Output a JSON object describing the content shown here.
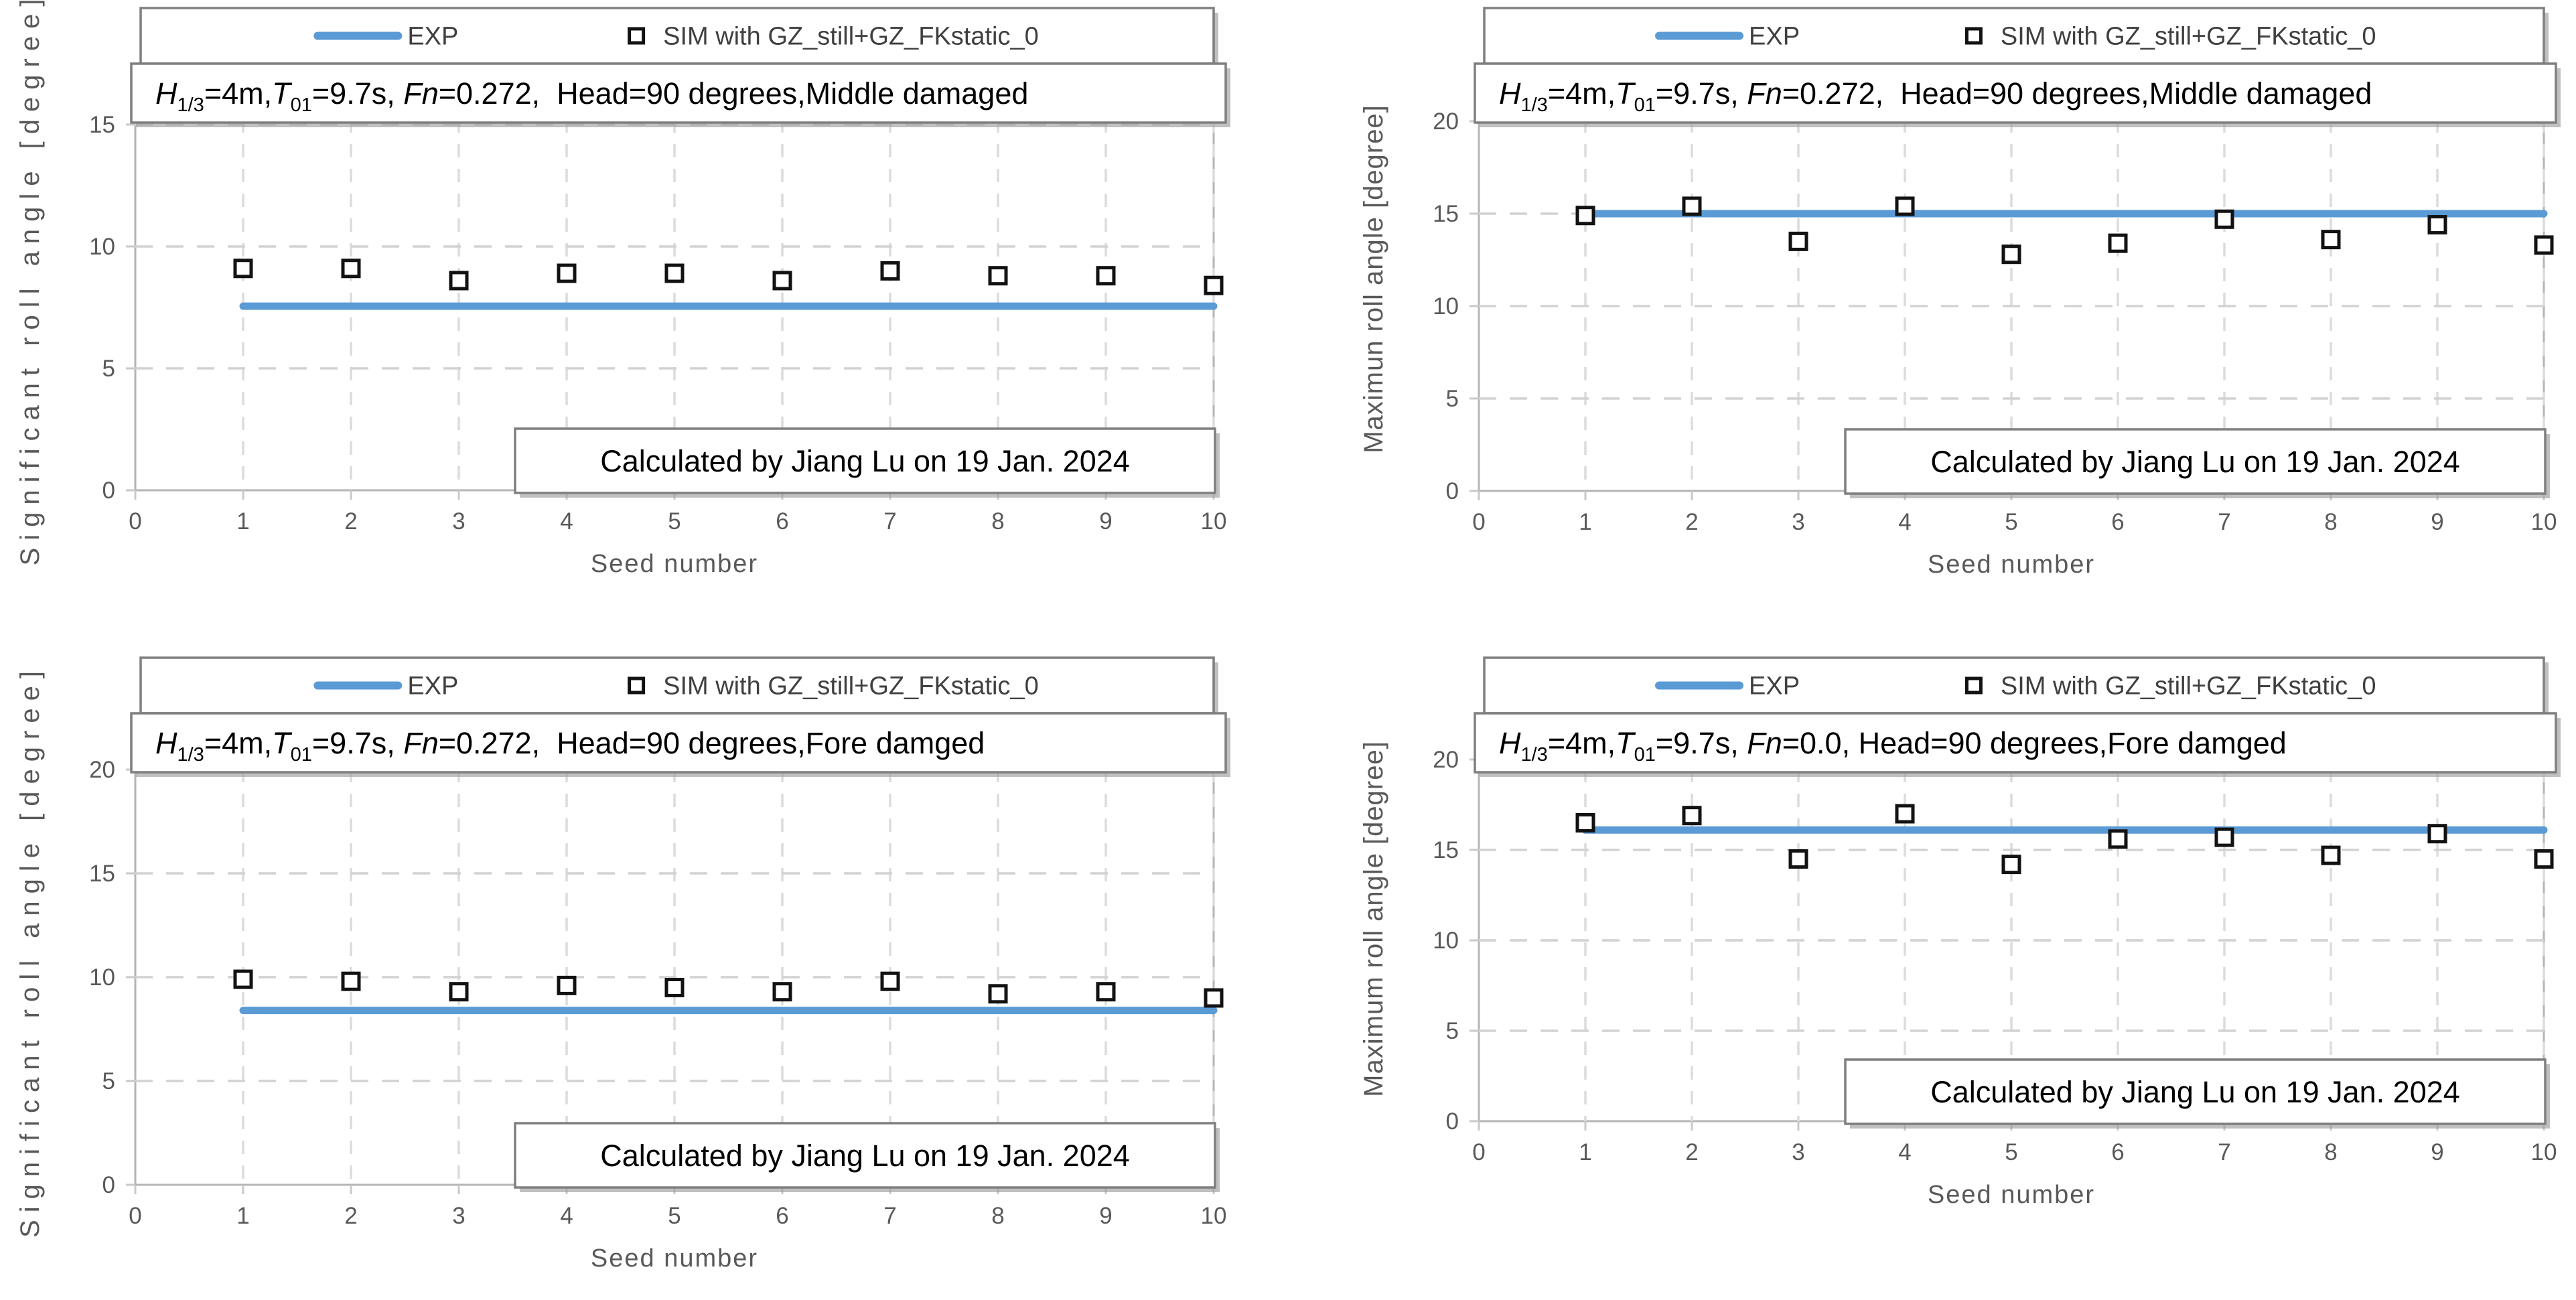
{
  "page": {
    "background": "#ffffff"
  },
  "colors": {
    "exp_line": "#5B9BD5",
    "marker_stroke": "#121212",
    "marker_fill": "#ffffff",
    "grid_h": "#d2d2d2",
    "grid_v": "#dcdcdc",
    "plot_border": "#b5b5b5",
    "tick_stub": "#c9c9c9",
    "axis_text": "#595959",
    "legend_text": "#3f3f3f",
    "title_text": "#000000",
    "annotation_text": "#000000",
    "box_border": "#7f7f7f",
    "box_fill": "#ffffff"
  },
  "chart_data": [
    {
      "type": "scatter",
      "position": "top-left",
      "title": "H1/3=4m,T01=9.7s, Fn=0.272,  Head=90 degrees,Middle damaged",
      "condition_runs": [
        {
          "t": "H",
          "i": true
        },
        {
          "t": "1/3",
          "sub": true
        },
        {
          "t": "=4m,"
        },
        {
          "t": "T",
          "i": true
        },
        {
          "t": "01",
          "sub": true
        },
        {
          "t": "=9.7s, "
        },
        {
          "t": "Fn",
          "i": true
        },
        {
          "t": "=0.272,  Head=90 degrees,Middle damaged"
        }
      ],
      "legend": {
        "exp": "EXP",
        "sim": "SIM with GZ_still+GZ_FKstatic_0"
      },
      "annotation": "Calculated by Jiang Lu on 19 Jan. 2024",
      "xlabel": "Seed number",
      "ylabel": "Significant roll angle [degree]",
      "xticks": [
        0,
        1,
        2,
        3,
        4,
        5,
        6,
        7,
        8,
        9,
        10
      ],
      "yticks": [
        0,
        5,
        10,
        15
      ],
      "xlim": [
        0,
        10
      ],
      "ylim": [
        0,
        15
      ],
      "x": [
        1,
        2,
        3,
        4,
        5,
        6,
        7,
        8,
        9,
        10
      ],
      "series": [
        {
          "name": "EXP",
          "type": "line",
          "value": 7.55
        },
        {
          "name": "SIM with GZ_still+GZ_FKstatic_0",
          "type": "scatter",
          "values": [
            9.1,
            9.1,
            8.6,
            8.9,
            8.9,
            8.6,
            9.0,
            8.8,
            8.8,
            8.4
          ]
        }
      ]
    },
    {
      "type": "scatter",
      "position": "top-right",
      "title": "H1/3=4m,T01=9.7s, Fn=0.272,  Head=90 degrees,Middle damaged",
      "condition_runs": [
        {
          "t": "H",
          "i": true
        },
        {
          "t": "1/3",
          "sub": true
        },
        {
          "t": "=4m,"
        },
        {
          "t": "T",
          "i": true
        },
        {
          "t": "01",
          "sub": true
        },
        {
          "t": "=9.7s, "
        },
        {
          "t": "Fn",
          "i": true
        },
        {
          "t": "=0.272,  Head=90 degrees,Middle damaged"
        }
      ],
      "legend": {
        "exp": "EXP",
        "sim": "SIM with GZ_still+GZ_FKstatic_0"
      },
      "annotation": "Calculated by Jiang Lu on 19 Jan. 2024",
      "xlabel": "Seed number",
      "ylabel": "Maximun roll angle [degree]",
      "xticks": [
        0,
        1,
        2,
        3,
        4,
        5,
        6,
        7,
        8,
        9,
        10
      ],
      "yticks": [
        0,
        5,
        10,
        15,
        20
      ],
      "xlim": [
        0,
        10
      ],
      "ylim": [
        0,
        20
      ],
      "x": [
        1,
        2,
        3,
        4,
        5,
        6,
        7,
        8,
        9,
        10
      ],
      "series": [
        {
          "name": "EXP",
          "type": "line",
          "value": 15.0
        },
        {
          "name": "SIM with GZ_still+GZ_FKstatic_0",
          "type": "scatter",
          "values": [
            14.9,
            15.4,
            13.5,
            15.4,
            12.8,
            13.4,
            14.7,
            13.6,
            14.4,
            13.3
          ]
        }
      ]
    },
    {
      "type": "scatter",
      "position": "bottom-left",
      "title": "H1/3=4m,T01=9.7s, Fn=0.272,  Head=90 degrees,Fore damged",
      "condition_runs": [
        {
          "t": "H",
          "i": true
        },
        {
          "t": "1/3",
          "sub": true
        },
        {
          "t": "=4m,"
        },
        {
          "t": "T",
          "i": true
        },
        {
          "t": "01",
          "sub": true
        },
        {
          "t": "=9.7s, "
        },
        {
          "t": "Fn",
          "i": true
        },
        {
          "t": "=0.272,  Head=90 degrees,Fore damged"
        }
      ],
      "legend": {
        "exp": "EXP",
        "sim": "SIM with GZ_still+GZ_FKstatic_0"
      },
      "annotation": "Calculated by Jiang Lu on 19 Jan. 2024",
      "xlabel": "Seed number",
      "ylabel": "Significant roll angle [degree]",
      "xticks": [
        0,
        1,
        2,
        3,
        4,
        5,
        6,
        7,
        8,
        9,
        10
      ],
      "yticks": [
        0,
        5,
        10,
        15,
        20
      ],
      "xlim": [
        0,
        10
      ],
      "ylim": [
        0,
        20
      ],
      "x": [
        1,
        2,
        3,
        4,
        5,
        6,
        7,
        8,
        9,
        10
      ],
      "series": [
        {
          "name": "EXP",
          "type": "line",
          "value": 8.4
        },
        {
          "name": "SIM with GZ_still+GZ_FKstatic_0",
          "type": "scatter",
          "values": [
            9.9,
            9.8,
            9.3,
            9.6,
            9.5,
            9.3,
            9.8,
            9.2,
            9.3,
            9.0
          ]
        }
      ]
    },
    {
      "type": "scatter",
      "position": "bottom-right",
      "title": "H1/3=4m,T01=9.7s, Fn=0.0, Head=90 degrees,Fore damged",
      "condition_runs": [
        {
          "t": "H",
          "i": true
        },
        {
          "t": "1/3",
          "sub": true
        },
        {
          "t": "=4m,"
        },
        {
          "t": "T",
          "i": true
        },
        {
          "t": "01",
          "sub": true
        },
        {
          "t": "=9.7s, "
        },
        {
          "t": "Fn",
          "i": true
        },
        {
          "t": "=0.0, Head=90 degrees,Fore damged"
        }
      ],
      "legend": {
        "exp": "EXP",
        "sim": "SIM with GZ_still+GZ_FKstatic_0"
      },
      "annotation": "Calculated by Jiang Lu on 19 Jan. 2024",
      "xlabel": "Seed number",
      "ylabel": "Maximum roll angle [degree]",
      "xticks": [
        0,
        1,
        2,
        3,
        4,
        5,
        6,
        7,
        8,
        9,
        10
      ],
      "yticks": [
        0,
        5,
        10,
        15,
        20
      ],
      "xlim": [
        0,
        10
      ],
      "ylim": [
        0,
        20
      ],
      "x": [
        1,
        2,
        3,
        4,
        5,
        6,
        7,
        8,
        9,
        10
      ],
      "series": [
        {
          "name": "EXP",
          "type": "line",
          "value": 16.1
        },
        {
          "name": "SIM with GZ_still+GZ_FKstatic_0",
          "type": "scatter",
          "values": [
            16.5,
            16.9,
            14.5,
            17.0,
            14.2,
            15.6,
            15.7,
            14.7,
            15.9,
            14.5
          ]
        }
      ]
    }
  ]
}
